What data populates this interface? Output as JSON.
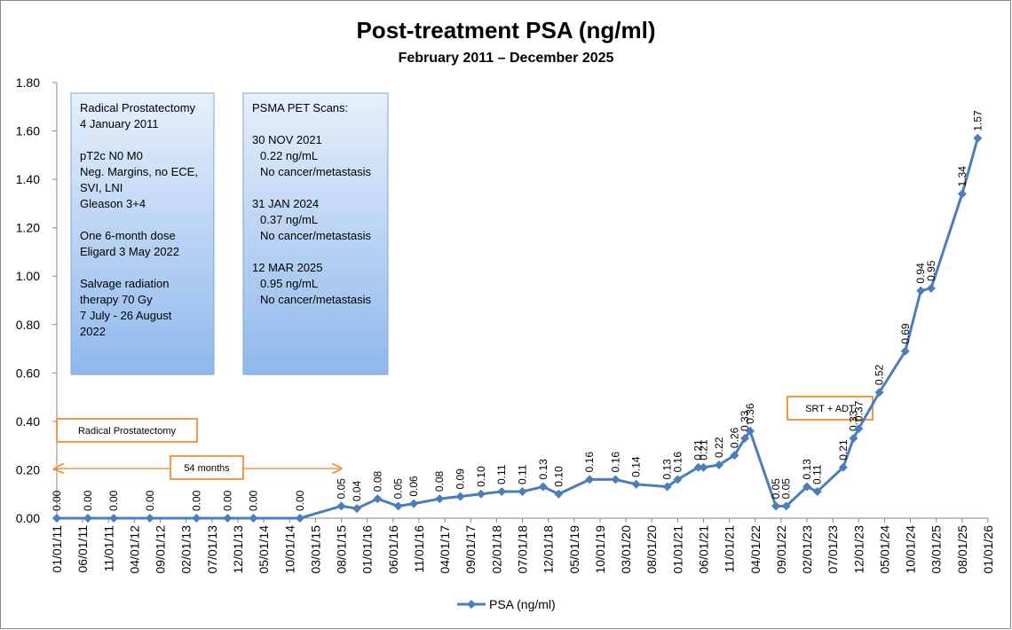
{
  "chart_data": {
    "type": "line",
    "title": "Post-treatment PSA (ng/ml)",
    "subtitle": "February 2011 – December 2025",
    "x": [
      "01/01/11",
      "07/01/11",
      "12/01/11",
      "07/01/12",
      "04/01/13",
      "10/01/13",
      "03/01/14",
      "12/01/14",
      "08/01/15",
      "11/01/15",
      "03/01/16",
      "07/01/16",
      "10/01/16",
      "03/01/17",
      "07/01/17",
      "11/01/17",
      "03/01/18",
      "07/01/18",
      "11/01/18",
      "02/01/19",
      "08/01/19",
      "01/01/20",
      "05/01/20",
      "11/01/20",
      "01/01/21",
      "05/01/21",
      "06/01/21",
      "09/01/21",
      "12/01/21",
      "02/01/22",
      "03/01/22",
      "08/01/22",
      "10/01/22",
      "02/01/23",
      "04/01/23",
      "09/01/23",
      "11/01/23",
      "12/01/23",
      "04/01/24",
      "09/01/24",
      "12/01/24",
      "02/01/25",
      "08/01/25",
      "11/01/25"
    ],
    "series": [
      {
        "name": "PSA (ng/ml)",
        "color": "#4a7ebb",
        "values": [
          0,
          0,
          0,
          0,
          0,
          0,
          0,
          0,
          0.05,
          0.04,
          0.08,
          0.05,
          0.06,
          0.08,
          0.09,
          0.1,
          0.11,
          0.11,
          0.13,
          0.1,
          0.16,
          0.16,
          0.14,
          0.13,
          0.16,
          0.21,
          0.21,
          0.22,
          0.26,
          0.33,
          0.36,
          0.05,
          0.05,
          0.13,
          0.11,
          0.21,
          0.33,
          0.37,
          0.52,
          0.69,
          0.94,
          0.95,
          1.34,
          1.57
        ],
        "value_labels": [
          "0.00",
          "0.00",
          "0.00",
          "0.00",
          "0.00",
          "0.00",
          "0.00",
          "0.00",
          "0.05",
          "0.04",
          "0.08",
          "0.05",
          "0.06",
          "0.08",
          "0.09",
          "0.10",
          "0.11",
          "0.11",
          "0.13",
          "0.10",
          "0.16",
          "0.16",
          "0.14",
          "0.13",
          "0.16",
          "0.21",
          "0.21",
          "0.22",
          "0.26",
          "0.33",
          "0.36",
          "0.05",
          "0.05",
          "0.13",
          "0.11",
          "0.21",
          "0.33",
          "0.37",
          "0.52",
          "0.69",
          "0.94",
          "0.95",
          "1.34",
          "1.57"
        ]
      }
    ],
    "xlim": [
      "01/01/11",
      "01/01/26"
    ],
    "xticks": [
      "01/01/11",
      "06/01/11",
      "11/01/11",
      "04/01/12",
      "09/01/12",
      "02/01/13",
      "07/01/13",
      "12/01/13",
      "05/01/14",
      "10/01/14",
      "03/01/15",
      "08/01/15",
      "01/01/16",
      "06/01/16",
      "11/01/16",
      "04/01/17",
      "09/01/17",
      "02/01/18",
      "07/01/18",
      "12/01/18",
      "05/01/19",
      "10/01/19",
      "03/01/20",
      "08/01/20",
      "01/01/21",
      "06/01/21",
      "11/01/21",
      "04/01/22",
      "09/01/22",
      "02/01/23",
      "07/01/23",
      "12/01/23",
      "05/01/24",
      "10/01/24",
      "03/01/25",
      "08/01/25",
      "01/01/26"
    ],
    "ylim": [
      0,
      1.8
    ],
    "yticks": [
      {
        "value": 0,
        "label": "0.00"
      },
      {
        "value": 0.2,
        "label": "0.20"
      },
      {
        "value": 0.4,
        "label": "0.40"
      },
      {
        "value": 0.6,
        "label": "0.60"
      },
      {
        "value": 0.8,
        "label": "0.80"
      },
      {
        "value": 1,
        "label": "1.00"
      },
      {
        "value": 1.2,
        "label": "1.20"
      },
      {
        "value": 1.4,
        "label": "1.40"
      },
      {
        "value": 1.6,
        "label": "1.60"
      },
      {
        "value": 1.8,
        "label": "1.80"
      }
    ],
    "grid": false,
    "legend": "bottom",
    "info_boxes": [
      [
        [
          "Radical Prostatectomy",
          "4 January 2011"
        ],
        [
          "pT2c N0 M0",
          "Neg. Margins, no ECE,",
          "SVI, LNI",
          "Gleason 3+4"
        ],
        [
          "One 6-month dose",
          "Eligard 3 May 2022"
        ],
        [
          "Salvage radiation",
          "therapy 70 Gy",
          "7 July - 26 August",
          "2022"
        ]
      ],
      [
        [
          "PSMA PET Scans:"
        ],
        [
          "30 NOV 2021",
          "0.22 ng/mL",
          "No cancer/metastasis"
        ],
        [
          "31 JAN 2024",
          "0.37 ng/mL",
          "No cancer/metastasis"
        ],
        [
          "12 MAR 2025",
          "0.95 ng/mL",
          "No cancer/metastasis"
        ]
      ]
    ],
    "annotations": [
      "Radical Prostatectomy",
      "54 months",
      "SRT + ADT"
    ]
  }
}
